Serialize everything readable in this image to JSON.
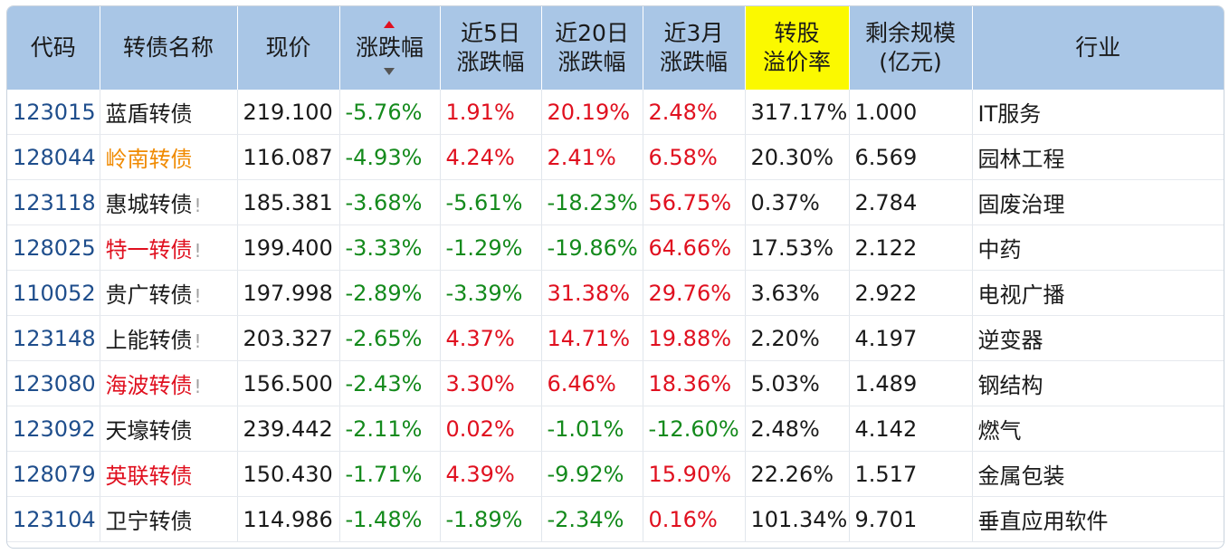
{
  "colors": {
    "header_bg": "#a9c6e6",
    "premium_header_bg": "#fbf900",
    "code_color": "#1f4e8c",
    "negative": "#148a1c",
    "positive": "#e0101f",
    "name_orange": "#f08a00",
    "name_red": "#e0101f"
  },
  "header": {
    "code": "代码",
    "name": "转债名称",
    "price": "现价",
    "change": "涨跌幅",
    "change_5d": [
      "近5日",
      "涨跌幅"
    ],
    "change_20d": [
      "近20日",
      "涨跌幅"
    ],
    "change_3m": [
      "近3月",
      "涨跌幅"
    ],
    "premium": [
      "转股",
      "溢价率"
    ],
    "remaining": [
      "剩余规模",
      "(亿元)"
    ],
    "industry": "行业"
  },
  "sort": {
    "column": "change",
    "up_icon": "sort-asc-icon",
    "down_icon": "sort-desc-icon"
  },
  "rows": [
    {
      "code": "123015",
      "name": "蓝盾转债",
      "name_color": "default",
      "warn": "",
      "price": "219.100",
      "change": "-5.76%",
      "change_5d": "1.91%",
      "change_20d": "20.19%",
      "change_3m": "2.48%",
      "premium": "317.17%",
      "remaining": "1.000",
      "industry": "IT服务"
    },
    {
      "code": "128044",
      "name": "岭南转债",
      "name_color": "orange",
      "warn": "",
      "price": "116.087",
      "change": "-4.93%",
      "change_5d": "4.24%",
      "change_20d": "2.41%",
      "change_3m": "6.58%",
      "premium": "20.30%",
      "remaining": "6.569",
      "industry": "园林工程"
    },
    {
      "code": "123118",
      "name": "惠城转债",
      "name_color": "default",
      "warn": "!",
      "price": "185.381",
      "change": "-3.68%",
      "change_5d": "-5.61%",
      "change_20d": "-18.23%",
      "change_3m": "56.75%",
      "premium": "0.37%",
      "remaining": "2.784",
      "industry": "固废治理"
    },
    {
      "code": "128025",
      "name": "特一转债",
      "name_color": "red",
      "warn": "!",
      "price": "199.400",
      "change": "-3.33%",
      "change_5d": "-1.29%",
      "change_20d": "-19.86%",
      "change_3m": "64.66%",
      "premium": "17.53%",
      "remaining": "2.122",
      "industry": "中药"
    },
    {
      "code": "110052",
      "name": "贵广转债",
      "name_color": "default",
      "warn": "!",
      "price": "197.998",
      "change": "-2.89%",
      "change_5d": "-3.39%",
      "change_20d": "31.38%",
      "change_3m": "29.76%",
      "premium": "3.63%",
      "remaining": "2.922",
      "industry": "电视广播"
    },
    {
      "code": "123148",
      "name": "上能转债",
      "name_color": "default",
      "warn": "!",
      "price": "203.327",
      "change": "-2.65%",
      "change_5d": "4.37%",
      "change_20d": "14.71%",
      "change_3m": "19.88%",
      "premium": "2.20%",
      "remaining": "4.197",
      "industry": "逆变器"
    },
    {
      "code": "123080",
      "name": "海波转债",
      "name_color": "red",
      "warn": "!",
      "price": "156.500",
      "change": "-2.43%",
      "change_5d": "3.30%",
      "change_20d": "6.46%",
      "change_3m": "18.36%",
      "premium": "5.03%",
      "remaining": "1.489",
      "industry": "钢结构"
    },
    {
      "code": "123092",
      "name": "天壕转债",
      "name_color": "default",
      "warn": "",
      "price": "239.442",
      "change": "-2.11%",
      "change_5d": "0.02%",
      "change_20d": "-1.01%",
      "change_3m": "-12.60%",
      "premium": "2.48%",
      "remaining": "4.142",
      "industry": "燃气"
    },
    {
      "code": "128079",
      "name": "英联转债",
      "name_color": "red",
      "warn": "",
      "price": "150.430",
      "change": "-1.71%",
      "change_5d": "4.39%",
      "change_20d": "-9.92%",
      "change_3m": "15.90%",
      "premium": "22.26%",
      "remaining": "1.517",
      "industry": "金属包装"
    },
    {
      "code": "123104",
      "name": "卫宁转债",
      "name_color": "default",
      "warn": "",
      "price": "114.986",
      "change": "-1.48%",
      "change_5d": "-1.89%",
      "change_20d": "-2.34%",
      "change_3m": "0.16%",
      "premium": "101.34%",
      "remaining": "9.701",
      "industry": "垂直应用软件"
    }
  ]
}
